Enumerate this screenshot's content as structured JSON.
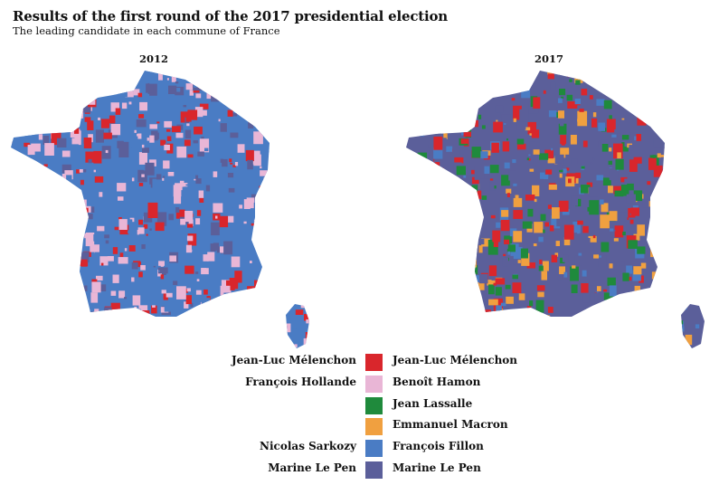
{
  "header": {
    "title": "Results of the first round of the 2017 presidential election",
    "subtitle": "The leading candidate in each commune of France"
  },
  "maps": [
    {
      "label": "2012",
      "dominant": "#4a7cc4",
      "mix": [
        "#e9b6d6",
        "#e9b6d6",
        "#4a7cc4",
        "#5b5f9a",
        "#d9262c"
      ]
    },
    {
      "label": "2017",
      "dominant": "#5b5f9a",
      "mix": [
        "#5b5f9a",
        "#f0a040",
        "#d9262c",
        "#4a7cc4",
        "#1f8a3c"
      ]
    }
  ],
  "legend": {
    "left": [
      {
        "label": "Jean-Luc Mélenchon",
        "row": 0
      },
      {
        "label": "François Hollande",
        "row": 1
      },
      {
        "label": "Nicolas Sarkozy",
        "row": 4
      },
      {
        "label": "Marine Le Pen",
        "row": 5
      }
    ],
    "right": [
      {
        "label": "Jean-Luc Mélenchon",
        "color": "#d9262c"
      },
      {
        "label": "Benoît Hamon",
        "color": "#e9b6d6"
      },
      {
        "label": "Jean Lassalle",
        "color": "#1f8a3c"
      },
      {
        "label": "Emmanuel Macron",
        "color": "#f0a040"
      },
      {
        "label": "François Fillon",
        "color": "#4a7cc4"
      },
      {
        "label": "Marine Le Pen",
        "color": "#5b5f9a"
      }
    ]
  }
}
